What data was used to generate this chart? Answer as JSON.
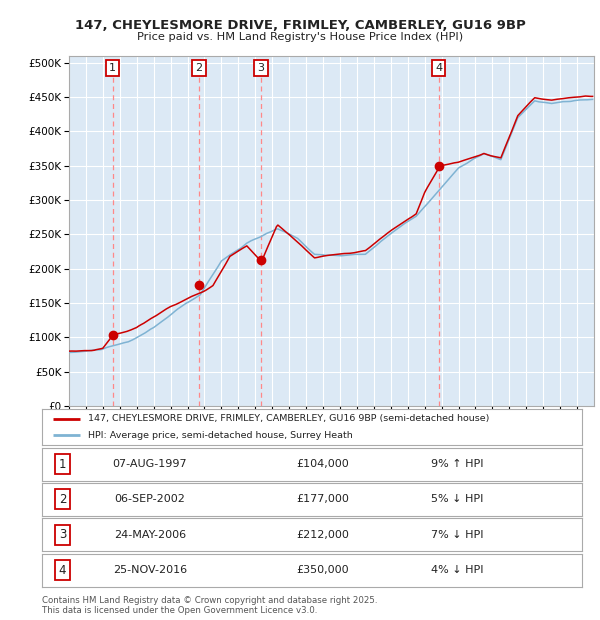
{
  "title_line1": "147, CHEYLESMORE DRIVE, FRIMLEY, CAMBERLEY, GU16 9BP",
  "title_line2": "Price paid vs. HM Land Registry's House Price Index (HPI)",
  "bg_color": "#dce9f5",
  "grid_color": "#ffffff",
  "y_ticks": [
    0,
    50000,
    100000,
    150000,
    200000,
    250000,
    300000,
    350000,
    400000,
    450000,
    500000
  ],
  "y_tick_labels": [
    "£0",
    "£50K",
    "£100K",
    "£150K",
    "£200K",
    "£250K",
    "£300K",
    "£350K",
    "£400K",
    "£450K",
    "£500K"
  ],
  "sale_prices": [
    104000,
    177000,
    212000,
    350000
  ],
  "sale_labels": [
    "1",
    "2",
    "3",
    "4"
  ],
  "sale_pct": [
    "9% ↑ HPI",
    "5% ↓ HPI",
    "7% ↓ HPI",
    "4% ↓ HPI"
  ],
  "sale_date_strs": [
    "07-AUG-1997",
    "06-SEP-2002",
    "24-MAY-2006",
    "25-NOV-2016"
  ],
  "legend_label_red": "147, CHEYLESMORE DRIVE, FRIMLEY, CAMBERLEY, GU16 9BP (semi-detached house)",
  "legend_label_blue": "HPI: Average price, semi-detached house, Surrey Heath",
  "footnote": "Contains HM Land Registry data © Crown copyright and database right 2025.\nThis data is licensed under the Open Government Licence v3.0.",
  "red_color": "#cc0000",
  "blue_color": "#7fb3d3",
  "dashed_color": "#ff8888"
}
